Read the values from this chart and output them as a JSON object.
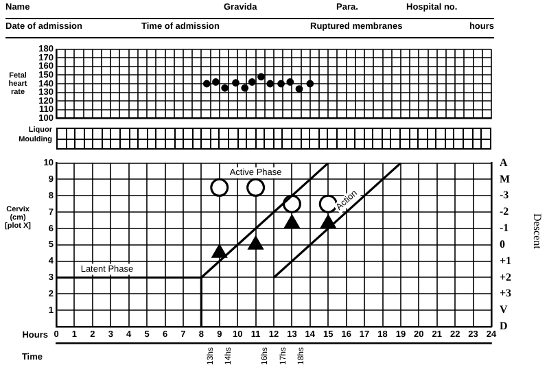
{
  "chart_data": [
    {
      "type": "other",
      "annotations": [
        "Name",
        "Gravida",
        "Para.",
        "Hospital no.",
        "Date of admission",
        "Time of admission",
        "Ruptured membranes",
        "hours"
      ]
    },
    {
      "type": "scatter",
      "ylabel": "Fetal heart rate",
      "x": [
        8.3,
        8.8,
        9.3,
        9.9,
        10.4,
        10.8,
        11.3,
        11.8,
        12.4,
        12.9,
        13.4,
        14.0
      ],
      "values": [
        140,
        142,
        135,
        141,
        135,
        142,
        148,
        140,
        140,
        142,
        134,
        140
      ],
      "color": "#000000",
      "marker": "circle",
      "xlim": [
        0,
        24
      ],
      "xticks": [
        {
          "value": 0,
          "label": null
        },
        {
          "value": 0.5,
          "label": null
        },
        {
          "value": 1,
          "label": null
        },
        {
          "value": 1.5,
          "label": null
        },
        {
          "value": 2,
          "label": null
        },
        {
          "value": 2.5,
          "label": null
        },
        {
          "value": 3,
          "label": null
        },
        {
          "value": 3.5,
          "label": null
        },
        {
          "value": 4,
          "label": null
        },
        {
          "value": 4.5,
          "label": null
        },
        {
          "value": 5,
          "label": null
        },
        {
          "value": 5.5,
          "label": null
        },
        {
          "value": 6,
          "label": null
        },
        {
          "value": 6.5,
          "label": null
        },
        {
          "value": 7,
          "label": null
        },
        {
          "value": 7.5,
          "label": null
        },
        {
          "value": 8,
          "label": null
        },
        {
          "value": 8.5,
          "label": null
        },
        {
          "value": 9,
          "label": null
        },
        {
          "value": 9.5,
          "label": null
        },
        {
          "value": 10,
          "label": null
        },
        {
          "value": 10.5,
          "label": null
        },
        {
          "value": 11,
          "label": null
        },
        {
          "value": 11.5,
          "label": null
        },
        {
          "value": 12,
          "label": null
        },
        {
          "value": 12.5,
          "label": null
        },
        {
          "value": 13,
          "label": null
        },
        {
          "value": 13.5,
          "label": null
        },
        {
          "value": 14,
          "label": null
        },
        {
          "value": 14.5,
          "label": null
        },
        {
          "value": 15,
          "label": null
        },
        {
          "value": 15.5,
          "label": null
        },
        {
          "value": 16,
          "label": null
        },
        {
          "value": 16.5,
          "label": null
        },
        {
          "value": 17,
          "label": null
        },
        {
          "value": 17.5,
          "label": null
        },
        {
          "value": 18,
          "label": null
        },
        {
          "value": 18.5,
          "label": null
        },
        {
          "value": 19,
          "label": null
        },
        {
          "value": 19.5,
          "label": null
        },
        {
          "value": 20,
          "label": null
        },
        {
          "value": 20.5,
          "label": null
        },
        {
          "value": 21,
          "label": null
        },
        {
          "value": 21.5,
          "label": null
        },
        {
          "value": 22,
          "label": null
        },
        {
          "value": 22.5,
          "label": null
        },
        {
          "value": 23,
          "label": null
        },
        {
          "value": 23.5,
          "label": null
        },
        {
          "value": 24,
          "label": null
        }
      ],
      "ylim": [
        100,
        180
      ],
      "yticks": [
        100,
        110,
        120,
        130,
        140,
        150,
        160,
        170,
        180
      ],
      "tick_labels": "y",
      "grid": true,
      "legend": false
    },
    {
      "type": "other",
      "annotations": [
        "Liquor",
        "Moulding"
      ]
    },
    {
      "type": "line",
      "ylabel": "Cervix (cm) [plot X]",
      "y2label": "Descent",
      "xlabel": "Hours",
      "x2label": "Time",
      "xlim": [
        0,
        24
      ],
      "xticks": [
        0,
        1,
        2,
        3,
        4,
        5,
        6,
        7,
        8,
        9,
        10,
        11,
        12,
        13,
        14,
        15,
        16,
        17,
        18,
        19,
        20,
        21,
        22,
        23,
        24
      ],
      "ylim": [
        0,
        10
      ],
      "yticks": [
        1,
        2,
        3,
        4,
        5,
        6,
        7,
        8,
        9,
        10
      ],
      "y2lim": [
        5,
        -5
      ],
      "y2ticks": [
        {
          "value": -5,
          "label": "A"
        },
        {
          "value": -4,
          "label": "M"
        },
        -3,
        -2,
        -1,
        0,
        {
          "value": 1,
          "label": "+1"
        },
        {
          "value": 2,
          "label": "+2"
        },
        {
          "value": 3,
          "label": "+3"
        },
        {
          "value": 4,
          "label": "V"
        },
        {
          "value": 5,
          "label": "D"
        }
      ],
      "x2lim": [
        4.5,
        28.5
      ],
      "x2ticks": [
        {
          "value": 13,
          "label": "13hs"
        },
        {
          "value": 14,
          "label": "14hs"
        },
        {
          "value": 16,
          "label": "16hs"
        },
        {
          "value": 17,
          "label": "17hs"
        },
        {
          "value": 18,
          "label": "18hs"
        }
      ],
      "grid": true,
      "legend": false,
      "series": [
        {
          "name": "Latent Phase",
          "type": "line",
          "x": [
            0,
            8,
            8
          ],
          "values": [
            3,
            3,
            0
          ],
          "color": "#000000",
          "marker": "none"
        },
        {
          "type": "line",
          "x": [
            8,
            15
          ],
          "values": [
            3,
            10
          ],
          "color": "#000000",
          "marker": "none"
        },
        {
          "name": "Action",
          "type": "line",
          "x": [
            12,
            19
          ],
          "values": [
            3,
            10
          ],
          "color": "#000000",
          "marker": "none"
        },
        {
          "type": "scatter",
          "x": [
            9,
            11,
            13,
            15
          ],
          "values": [
            4.5,
            5,
            6.3,
            6.3
          ],
          "color": "#000000",
          "marker": "triangle"
        },
        {
          "type": "scatter",
          "x": [
            9,
            11,
            13,
            15
          ],
          "values": [
            8.5,
            8.5,
            7.5,
            7.5
          ],
          "color": "#000000",
          "marker": "circle"
        }
      ],
      "annotations": [
        {
          "text": "Active Phase",
          "x": 11,
          "y": 9.4
        }
      ]
    }
  ]
}
